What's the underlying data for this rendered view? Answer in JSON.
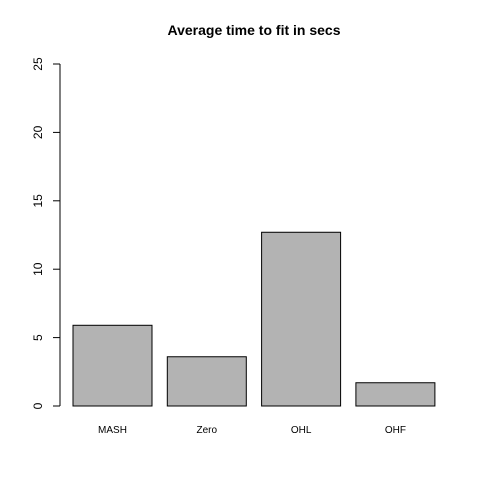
{
  "chart_data": {
    "type": "bar",
    "title": "Average time to fit in secs",
    "xlabel": "",
    "ylabel": "",
    "categories": [
      "MASH",
      "Zero",
      "OHL",
      "OHF"
    ],
    "values": [
      5.9,
      3.6,
      12.7,
      1.7
    ],
    "ylim": [
      0,
      25
    ],
    "yticks": [
      0,
      5,
      10,
      15,
      20,
      25
    ],
    "ytick_labels": [
      "0",
      "5",
      "10",
      "15",
      "20",
      "25"
    ],
    "grid": false,
    "legend": "none",
    "bar_color": "#b3b3b3",
    "bar_edge_color": "#000000"
  }
}
